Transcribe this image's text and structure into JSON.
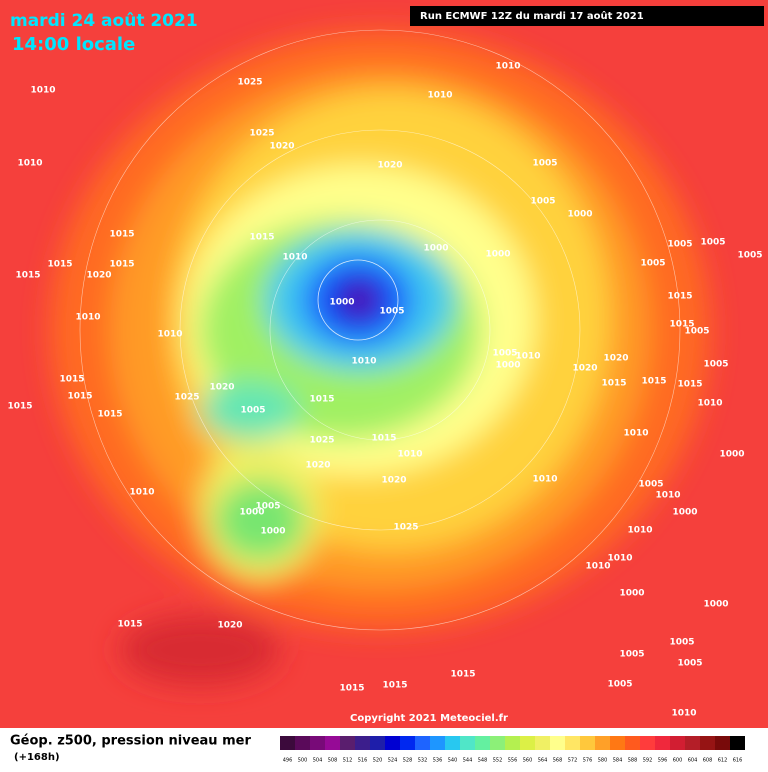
{
  "header": {
    "title": "mardi 24 août 2021",
    "time": "14:00 locale",
    "run": "Run ECMWF 12Z du mardi 17 août 2021"
  },
  "map": {
    "pressure_labels": [
      1010,
      1025,
      1010,
      1010,
      1025,
      1020,
      1010,
      1020,
      1005,
      1005,
      1000,
      1015,
      1015,
      1000,
      1000,
      1005,
      1005,
      1005,
      1015,
      1020,
      1015,
      1015,
      1010,
      1005,
      1010,
      1000,
      1005,
      1015,
      1010,
      1015,
      1005,
      1005,
      1010,
      1000,
      1010,
      1020,
      1020,
      1015,
      1020,
      1015,
      1015,
      1015,
      1005,
      1015,
      1025,
      1015,
      1010,
      1005,
      1015,
      1015,
      1025,
      1015,
      1010,
      1020,
      1020,
      1010,
      1010,
      1005,
      1000,
      1000,
      1025,
      1010,
      1000,
      1005,
      1010,
      1000,
      1010,
      1010,
      1010,
      1000,
      1000,
      1015,
      1020,
      1005,
      1005,
      1005,
      1015,
      1005,
      1015,
      1015,
      1010
    ]
  },
  "footer": {
    "legend_title": "Géop. z500, pression niveau mer",
    "legend_subtitle": "(+168h)",
    "copyright": "Copyright 2021 Meteociel.fr",
    "scale": [
      496,
      500,
      504,
      508,
      512,
      516,
      520,
      524,
      528,
      532,
      536,
      540,
      544,
      548,
      552,
      556,
      560,
      564,
      568,
      572,
      576,
      580,
      584,
      588,
      592,
      596,
      600,
      604,
      608,
      612,
      616
    ],
    "scale_colors": [
      "#3c0a3c",
      "#5a0a5a",
      "#780a78",
      "#960a96",
      "#5a1e6e",
      "#3c1e8c",
      "#1e1eaa",
      "#0000d2",
      "#0028f0",
      "#1e64ff",
      "#1e96ff",
      "#28c8f0",
      "#50e6c8",
      "#64f0a0",
      "#8cf078",
      "#b4f050",
      "#dcf046",
      "#f0f064",
      "#ffff8c",
      "#ffe664",
      "#ffc83c",
      "#ffa028",
      "#ff7814",
      "#ff5a1e",
      "#ff3c3c",
      "#f0283c",
      "#d21e32",
      "#b41e28",
      "#961414",
      "#780a0a",
      "#000000"
    ]
  }
}
